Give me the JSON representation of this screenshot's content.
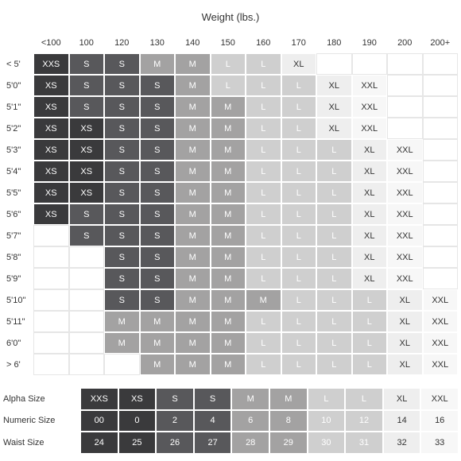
{
  "title": "Weight (lbs.)",
  "colors": {
    "XXS": {
      "bg": "#3a3a3c",
      "fg": "#ffffff"
    },
    "XS": {
      "bg": "#3a3a3c",
      "fg": "#ffffff"
    },
    "S": {
      "bg": "#58585b",
      "fg": "#ffffff"
    },
    "M": {
      "bg": "#a3a2a2",
      "fg": "#ffffff"
    },
    "L": {
      "bg": "#cfcfcf",
      "fg": "#ffffff"
    },
    "XL": {
      "bg": "#eeeeee",
      "fg": "#333333"
    },
    "XXL": {
      "bg": "#f7f7f7",
      "fg": "#333333"
    },
    "": {
      "bg": "#ffffff",
      "fg": "#333333"
    }
  },
  "chart_data": {
    "type": "table",
    "columns": [
      "<100",
      "100",
      "120",
      "130",
      "140",
      "150",
      "160",
      "170",
      "180",
      "190",
      "200",
      "200+"
    ],
    "rows": [
      {
        "height": "< 5'",
        "sizes": [
          "XXS",
          "S",
          "S",
          "M",
          "M",
          "L",
          "L",
          "XL",
          "",
          "",
          "",
          ""
        ]
      },
      {
        "height": "5'0\"",
        "sizes": [
          "XS",
          "S",
          "S",
          "S",
          "M",
          "L",
          "L",
          "L",
          "XL",
          "XXL",
          "",
          ""
        ]
      },
      {
        "height": "5'1\"",
        "sizes": [
          "XS",
          "S",
          "S",
          "S",
          "M",
          "M",
          "L",
          "L",
          "XL",
          "XXL",
          "",
          ""
        ]
      },
      {
        "height": "5'2\"",
        "sizes": [
          "XS",
          "XS",
          "S",
          "S",
          "M",
          "M",
          "L",
          "L",
          "XL",
          "XXL",
          "",
          ""
        ]
      },
      {
        "height": "5'3\"",
        "sizes": [
          "XS",
          "XS",
          "S",
          "S",
          "M",
          "M",
          "L",
          "L",
          "L",
          "XL",
          "XXL",
          ""
        ]
      },
      {
        "height": "5'4\"",
        "sizes": [
          "XS",
          "XS",
          "S",
          "S",
          "M",
          "M",
          "L",
          "L",
          "L",
          "XL",
          "XXL",
          ""
        ]
      },
      {
        "height": "5'5\"",
        "sizes": [
          "XS",
          "XS",
          "S",
          "S",
          "M",
          "M",
          "L",
          "L",
          "L",
          "XL",
          "XXL",
          ""
        ]
      },
      {
        "height": "5'6\"",
        "sizes": [
          "XS",
          "S",
          "S",
          "S",
          "M",
          "M",
          "L",
          "L",
          "L",
          "XL",
          "XXL",
          ""
        ]
      },
      {
        "height": "5'7\"",
        "sizes": [
          "",
          "S",
          "S",
          "S",
          "M",
          "M",
          "L",
          "L",
          "L",
          "XL",
          "XXL",
          ""
        ]
      },
      {
        "height": "5'8\"",
        "sizes": [
          "",
          "",
          "S",
          "S",
          "M",
          "M",
          "L",
          "L",
          "L",
          "XL",
          "XXL",
          ""
        ]
      },
      {
        "height": "5'9\"",
        "sizes": [
          "",
          "",
          "S",
          "S",
          "M",
          "M",
          "L",
          "L",
          "L",
          "XL",
          "XXL",
          ""
        ]
      },
      {
        "height": "5'10\"",
        "sizes": [
          "",
          "",
          "S",
          "S",
          "M",
          "M",
          "M",
          "L",
          "L",
          "L",
          "XL",
          "XXL"
        ]
      },
      {
        "height": "5'11\"",
        "sizes": [
          "",
          "",
          "M",
          "M",
          "M",
          "M",
          "L",
          "L",
          "L",
          "L",
          "XL",
          "XXL"
        ]
      },
      {
        "height": "6'0\"",
        "sizes": [
          "",
          "",
          "M",
          "M",
          "M",
          "M",
          "L",
          "L",
          "L",
          "L",
          "XL",
          "XXL"
        ]
      },
      {
        "height": "> 6'",
        "sizes": [
          "",
          "",
          "",
          "M",
          "M",
          "M",
          "L",
          "L",
          "L",
          "L",
          "XL",
          "XXL"
        ]
      }
    ]
  },
  "legend": {
    "rows": [
      {
        "label": "Alpha Size",
        "values": [
          "XXS",
          "XS",
          "S",
          "S",
          "M",
          "M",
          "L",
          "L",
          "XL",
          "XXL"
        ]
      },
      {
        "label": "Numeric Size",
        "values": [
          "00",
          "0",
          "2",
          "4",
          "6",
          "8",
          "10",
          "12",
          "14",
          "16"
        ]
      },
      {
        "label": "Waist Size",
        "values": [
          "24",
          "25",
          "26",
          "27",
          "28",
          "29",
          "30",
          "31",
          "32",
          "33"
        ]
      }
    ],
    "column_shades": [
      "XXS",
      "XS",
      "S",
      "S",
      "M",
      "M",
      "L",
      "L",
      "XL",
      "XXL"
    ]
  }
}
